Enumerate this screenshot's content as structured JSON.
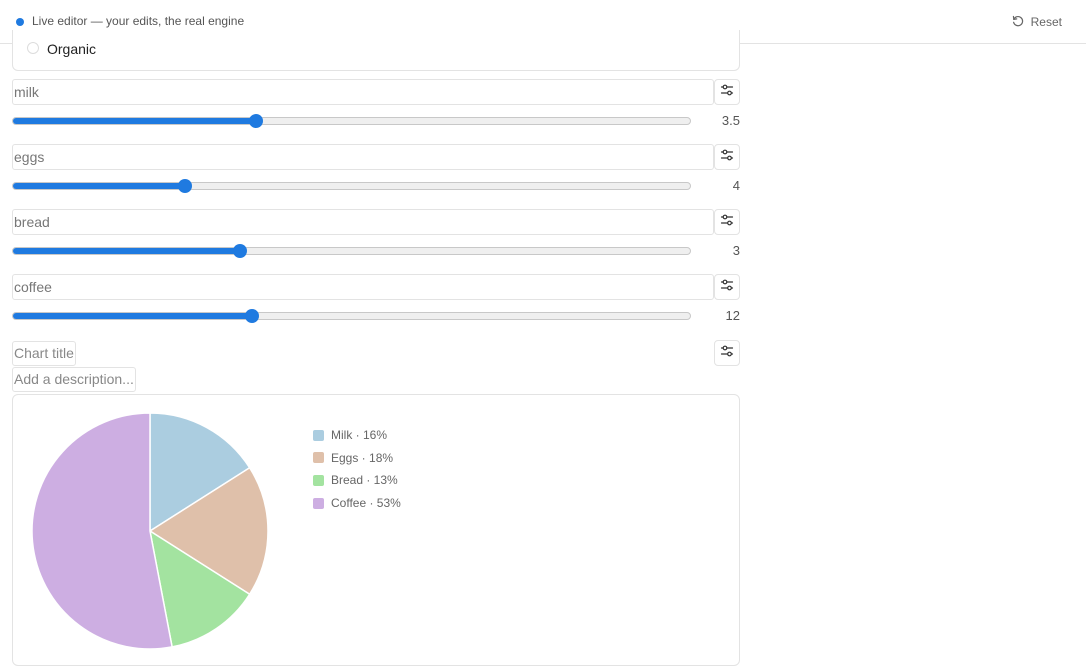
{
  "topbar": {
    "status_text": "Live editor — your edits, the real engine",
    "reset_label": "Reset",
    "accent": "#1f7ae0"
  },
  "options": {
    "organic_label": "Organic"
  },
  "items": [
    {
      "name": "milk",
      "value": 3.5,
      "value_label": "3.5",
      "slider_fraction": 0.36
    },
    {
      "name": "eggs",
      "value": 4,
      "value_label": "4",
      "slider_fraction": 0.255
    },
    {
      "name": "bread",
      "value": 3,
      "value_label": "3",
      "slider_fraction": 0.336
    },
    {
      "name": "coffee",
      "value": 12,
      "value_label": "12",
      "slider_fraction": 0.353
    }
  ],
  "chart_title_placeholder": "Chart title",
  "description_placeholder": "Add a description...",
  "chart_data": {
    "type": "pie",
    "slices": [
      {
        "label": "Milk · 16%",
        "value": 16,
        "color": "#abcde0"
      },
      {
        "label": "Eggs · 18%",
        "value": 18,
        "color": "#dfc0aa"
      },
      {
        "label": "Bread · 13%",
        "value": 13,
        "color": "#a3e3a0"
      },
      {
        "label": "Coffee · 53%",
        "value": 53,
        "color": "#cdaee2"
      }
    ],
    "legend_position": "right"
  }
}
